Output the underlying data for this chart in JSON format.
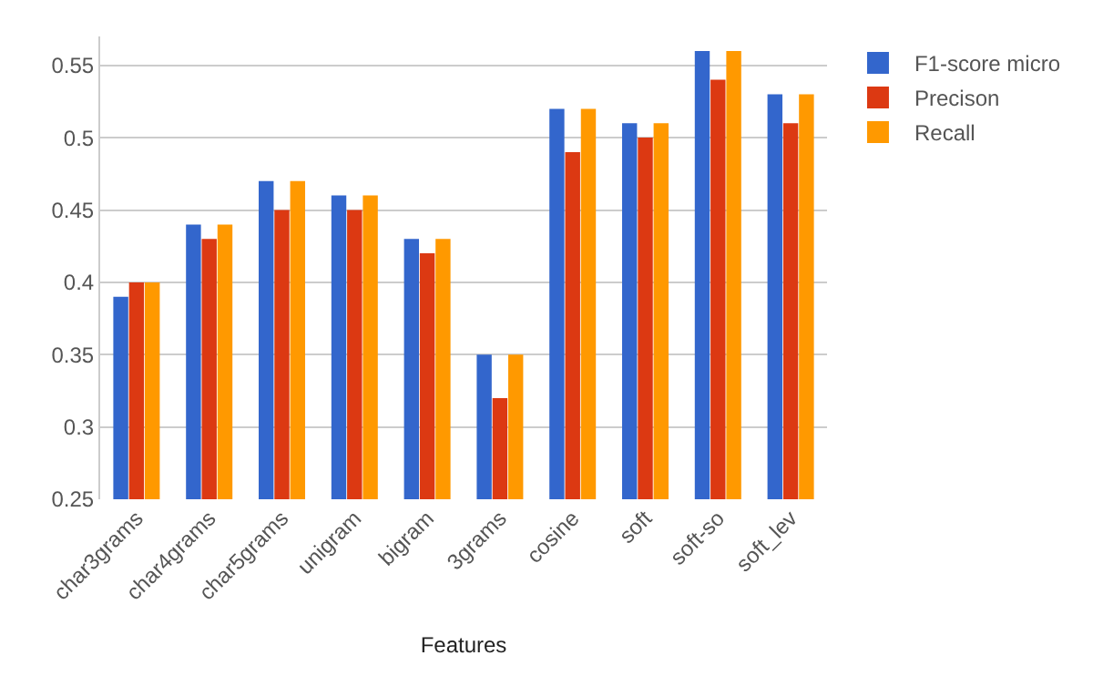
{
  "chart_data": {
    "type": "bar",
    "xlabel": "Features",
    "categories": [
      "char3grams",
      "char4grams",
      "char5grams",
      "unigram",
      "bigram",
      "3grams",
      "cosine",
      "soft",
      "soft-so",
      "soft_lev"
    ],
    "series": [
      {
        "name": "F1-score micro",
        "color": "#3366cc",
        "values": [
          0.39,
          0.44,
          0.47,
          0.46,
          0.43,
          0.35,
          0.52,
          0.51,
          0.56,
          0.53
        ]
      },
      {
        "name": "Precison",
        "color": "#dc3912",
        "values": [
          0.4,
          0.43,
          0.45,
          0.45,
          0.42,
          0.32,
          0.49,
          0.5,
          0.54,
          0.51
        ]
      },
      {
        "name": "Recall",
        "color": "#ff9900",
        "values": [
          0.4,
          0.44,
          0.47,
          0.46,
          0.43,
          0.35,
          0.52,
          0.51,
          0.56,
          0.53
        ]
      }
    ],
    "ylim": [
      0.25,
      0.57
    ],
    "yticks": [
      0.25,
      0.3,
      0.35,
      0.4,
      0.45,
      0.5,
      0.55
    ],
    "grid": "y",
    "legend": "top right"
  }
}
